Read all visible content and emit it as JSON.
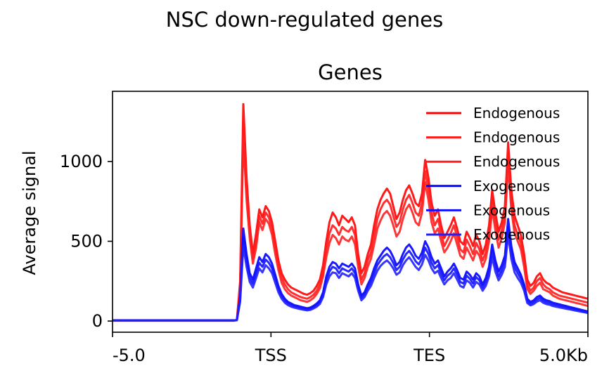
{
  "chart_data": {
    "type": "line",
    "suptitle": "NSC down-regulated genes",
    "title": "Genes",
    "ylabel": "Average signal",
    "xlabel": "",
    "x_ticks": [
      "-5.0",
      "TSS",
      "TES",
      "5.0Kb"
    ],
    "y_ticks": [
      "0",
      "500",
      "1000"
    ],
    "ylim": [
      -70,
      1440
    ],
    "grid": false,
    "legend_position": "top-right",
    "x": [
      0,
      1,
      2,
      3,
      4,
      5,
      6,
      7,
      8,
      9,
      10,
      11,
      12,
      13,
      14,
      15,
      16,
      17,
      18,
      19,
      20,
      21,
      22,
      23,
      24,
      25,
      26,
      27,
      28,
      29,
      30,
      31,
      32,
      33,
      34,
      35,
      36,
      37,
      38,
      39,
      40,
      41,
      42,
      43,
      44,
      45,
      46,
      47,
      48,
      49,
      50,
      51,
      52,
      53,
      54,
      55,
      56,
      57,
      58,
      59,
      60,
      61,
      62,
      63,
      64,
      65,
      66,
      67,
      68,
      69,
      70,
      71,
      72,
      73,
      74,
      75,
      76,
      77,
      78,
      79,
      80,
      81,
      82,
      83,
      84,
      85,
      86,
      87,
      88,
      89,
      90,
      91,
      92,
      93,
      94,
      95,
      96,
      97,
      98,
      99,
      100,
      101,
      102,
      103,
      104,
      105,
      106,
      107,
      108,
      109,
      110,
      111,
      112,
      113,
      114,
      115,
      116,
      117,
      118,
      119,
      120,
      121,
      122,
      123,
      124,
      125,
      126,
      127,
      128,
      129,
      130,
      131,
      132,
      133,
      134,
      135,
      136,
      137,
      138,
      139,
      140,
      141,
      142,
      143,
      144,
      145,
      146,
      147,
      148,
      149
    ],
    "series": [
      {
        "name": "Endogenous",
        "color": "#ff0000",
        "values": [
          5,
          5,
          5,
          5,
          5,
          5,
          5,
          5,
          5,
          5,
          5,
          5,
          5,
          5,
          5,
          5,
          5,
          5,
          5,
          5,
          5,
          5,
          5,
          5,
          5,
          5,
          5,
          5,
          5,
          5,
          5,
          5,
          5,
          5,
          5,
          5,
          5,
          5,
          5,
          8,
          250,
          1360,
          900,
          600,
          420,
          550,
          700,
          650,
          720,
          690,
          620,
          500,
          380,
          300,
          260,
          230,
          210,
          200,
          190,
          180,
          170,
          165,
          175,
          190,
          220,
          260,
          350,
          500,
          620,
          680,
          650,
          600,
          660,
          640,
          620,
          650,
          600,
          420,
          300,
          340,
          420,
          480,
          600,
          700,
          760,
          800,
          830,
          800,
          720,
          640,
          680,
          760,
          820,
          850,
          800,
          740,
          720,
          800,
          1010,
          900,
          740,
          660,
          700,
          600,
          520,
          560,
          600,
          650,
          580,
          500,
          480,
          560,
          520,
          470,
          540,
          500,
          420,
          480,
          600,
          820,
          680,
          560,
          620,
          720,
          1120,
          820,
          660,
          600,
          540,
          420,
          260,
          220,
          240,
          280,
          300,
          260,
          240,
          230,
          210,
          200,
          190,
          180,
          175,
          170,
          165,
          160,
          155,
          150,
          145,
          140
        ]
      },
      {
        "name": "Endogenous",
        "color": "#ff1a1a",
        "values": [
          3,
          3,
          3,
          3,
          3,
          3,
          3,
          3,
          3,
          3,
          3,
          3,
          3,
          3,
          3,
          3,
          3,
          3,
          3,
          3,
          3,
          3,
          3,
          3,
          3,
          3,
          3,
          3,
          3,
          3,
          3,
          3,
          3,
          3,
          3,
          3,
          3,
          3,
          3,
          6,
          220,
          1240,
          820,
          560,
          390,
          500,
          660,
          610,
          680,
          650,
          580,
          460,
          350,
          270,
          230,
          200,
          180,
          170,
          160,
          150,
          145,
          140,
          150,
          165,
          190,
          230,
          310,
          450,
          550,
          600,
          580,
          540,
          590,
          570,
          560,
          590,
          540,
          380,
          260,
          300,
          380,
          430,
          540,
          640,
          700,
          740,
          760,
          730,
          660,
          590,
          620,
          700,
          760,
          790,
          740,
          680,
          660,
          740,
          940,
          830,
          680,
          600,
          640,
          550,
          470,
          510,
          550,
          600,
          530,
          450,
          430,
          510,
          470,
          420,
          490,
          450,
          380,
          430,
          550,
          760,
          620,
          510,
          570,
          670,
          1050,
          760,
          600,
          540,
          490,
          380,
          230,
          190,
          210,
          250,
          270,
          230,
          210,
          200,
          180,
          170,
          160,
          155,
          150,
          145,
          140,
          135,
          130,
          125,
          120,
          115
        ]
      },
      {
        "name": "Endogenous",
        "color": "#ff2020",
        "values": [
          2,
          2,
          2,
          2,
          2,
          2,
          2,
          2,
          2,
          2,
          2,
          2,
          2,
          2,
          2,
          2,
          2,
          2,
          2,
          2,
          2,
          2,
          2,
          2,
          2,
          2,
          2,
          2,
          2,
          2,
          2,
          2,
          2,
          2,
          2,
          2,
          2,
          2,
          2,
          5,
          200,
          1150,
          760,
          520,
          360,
          460,
          620,
          570,
          640,
          610,
          540,
          420,
          320,
          240,
          200,
          175,
          160,
          150,
          140,
          130,
          125,
          120,
          130,
          145,
          170,
          205,
          280,
          400,
          490,
          540,
          520,
          480,
          530,
          510,
          500,
          530,
          480,
          340,
          230,
          270,
          340,
          390,
          480,
          580,
          630,
          670,
          690,
          660,
          600,
          530,
          560,
          640,
          700,
          730,
          680,
          620,
          600,
          680,
          870,
          760,
          620,
          550,
          580,
          500,
          430,
          460,
          500,
          550,
          480,
          410,
          390,
          460,
          420,
          380,
          440,
          410,
          340,
          390,
          500,
          700,
          570,
          460,
          520,
          620,
          980,
          700,
          550,
          500,
          450,
          340,
          200,
          170,
          190,
          220,
          240,
          200,
          190,
          180,
          160,
          150,
          140,
          135,
          130,
          125,
          120,
          115,
          110,
          105,
          100,
          95
        ]
      },
      {
        "name": "Exogenous",
        "color": "#0000ff",
        "values": [
          5,
          5,
          5,
          5,
          5,
          5,
          5,
          5,
          5,
          5,
          5,
          5,
          5,
          5,
          5,
          5,
          5,
          5,
          5,
          5,
          5,
          5,
          5,
          5,
          5,
          5,
          5,
          5,
          5,
          5,
          5,
          5,
          5,
          5,
          5,
          5,
          5,
          5,
          5,
          8,
          150,
          580,
          420,
          300,
          260,
          330,
          400,
          370,
          420,
          400,
          360,
          290,
          220,
          170,
          140,
          120,
          110,
          100,
          95,
          90,
          85,
          80,
          85,
          95,
          110,
          130,
          180,
          280,
          340,
          370,
          360,
          330,
          360,
          350,
          340,
          360,
          330,
          230,
          160,
          180,
          230,
          270,
          330,
          380,
          410,
          440,
          460,
          440,
          400,
          350,
          370,
          420,
          460,
          480,
          450,
          410,
          390,
          430,
          500,
          460,
          400,
          360,
          380,
          330,
          280,
          310,
          330,
          360,
          320,
          270,
          260,
          310,
          290,
          260,
          300,
          280,
          230,
          270,
          340,
          480,
          380,
          310,
          350,
          410,
          640,
          470,
          370,
          330,
          290,
          230,
          140,
          120,
          130,
          150,
          160,
          140,
          130,
          125,
          115,
          110,
          105,
          100,
          95,
          90,
          85,
          80,
          75,
          70,
          65,
          60
        ]
      },
      {
        "name": "Exogenous",
        "color": "#1010ff",
        "values": [
          4,
          4,
          4,
          4,
          4,
          4,
          4,
          4,
          4,
          4,
          4,
          4,
          4,
          4,
          4,
          4,
          4,
          4,
          4,
          4,
          4,
          4,
          4,
          4,
          4,
          4,
          4,
          4,
          4,
          4,
          4,
          4,
          4,
          4,
          4,
          4,
          4,
          4,
          4,
          7,
          135,
          520,
          380,
          270,
          235,
          300,
          365,
          340,
          385,
          365,
          330,
          265,
          200,
          155,
          128,
          110,
          100,
          92,
          87,
          82,
          78,
          74,
          78,
          87,
          100,
          120,
          165,
          255,
          310,
          340,
          330,
          300,
          330,
          320,
          310,
          330,
          300,
          210,
          145,
          165,
          210,
          245,
          300,
          350,
          380,
          405,
          420,
          400,
          365,
          320,
          340,
          385,
          420,
          440,
          410,
          375,
          355,
          395,
          460,
          420,
          365,
          330,
          350,
          300,
          255,
          285,
          300,
          330,
          290,
          245,
          235,
          285,
          265,
          235,
          275,
          255,
          210,
          245,
          310,
          440,
          345,
          280,
          320,
          375,
          590,
          430,
          340,
          300,
          265,
          210,
          125,
          108,
          118,
          135,
          145,
          127,
          118,
          113,
          104,
          100,
          95,
          91,
          86,
          82,
          77,
          73,
          68,
          64,
          59,
          55
        ]
      },
      {
        "name": "Exogenous",
        "color": "#2020ff",
        "values": [
          3,
          3,
          3,
          3,
          3,
          3,
          3,
          3,
          3,
          3,
          3,
          3,
          3,
          3,
          3,
          3,
          3,
          3,
          3,
          3,
          3,
          3,
          3,
          3,
          3,
          3,
          3,
          3,
          3,
          3,
          3,
          3,
          3,
          3,
          3,
          3,
          3,
          3,
          3,
          6,
          120,
          470,
          340,
          245,
          210,
          270,
          330,
          305,
          350,
          330,
          300,
          240,
          180,
          140,
          115,
          100,
          90,
          84,
          79,
          74,
          70,
          67,
          70,
          79,
          90,
          108,
          150,
          230,
          280,
          305,
          300,
          270,
          300,
          290,
          280,
          300,
          270,
          190,
          130,
          150,
          190,
          220,
          270,
          315,
          345,
          365,
          380,
          360,
          330,
          290,
          305,
          350,
          380,
          400,
          370,
          340,
          320,
          355,
          415,
          380,
          330,
          300,
          315,
          270,
          230,
          255,
          270,
          300,
          260,
          220,
          210,
          255,
          240,
          210,
          245,
          230,
          190,
          220,
          280,
          400,
          310,
          255,
          290,
          340,
          540,
          390,
          305,
          270,
          240,
          190,
          113,
          98,
          106,
          122,
          130,
          115,
          106,
          102,
          94,
          90,
          86,
          82,
          78,
          74,
          70,
          66,
          62,
          58,
          54,
          50
        ]
      }
    ]
  }
}
